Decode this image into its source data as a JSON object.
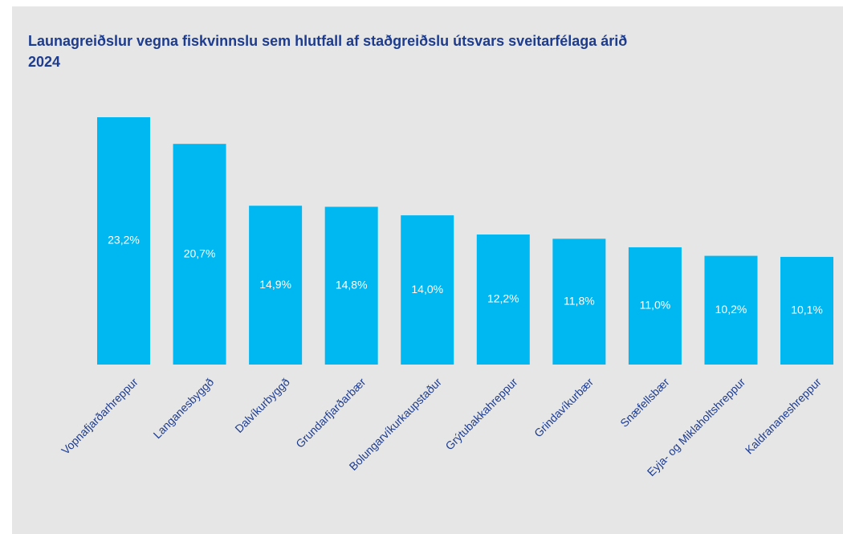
{
  "chart_data": {
    "type": "bar",
    "title": "Launagreiðslur vegna fiskvinnslu sem hlutfall af staðgreiðslu útsvars sveitarfélaga árið 2024",
    "categories": [
      "Vopnafjarðarhreppur",
      "Langanesbyggð",
      "Dalvíkurbyggð",
      "Grundarfjarðarbær",
      "Bolungarvíkurkaupstaður",
      "Grýtubakkahreppur",
      "Grindavíkurbær",
      "Snæfellsbær",
      "Eyja- og Miklaholtshreppur",
      "Kaldrananeshreppur"
    ],
    "values": [
      23.2,
      20.7,
      14.9,
      14.8,
      14.0,
      12.2,
      11.8,
      11.0,
      10.2,
      10.1
    ],
    "value_labels": [
      "23,2%",
      "20,7%",
      "14,9%",
      "14,8%",
      "14,0%",
      "12,2%",
      "11,8%",
      "11,0%",
      "10,2%",
      "10,1%"
    ],
    "color": "#00b8f1"
  }
}
